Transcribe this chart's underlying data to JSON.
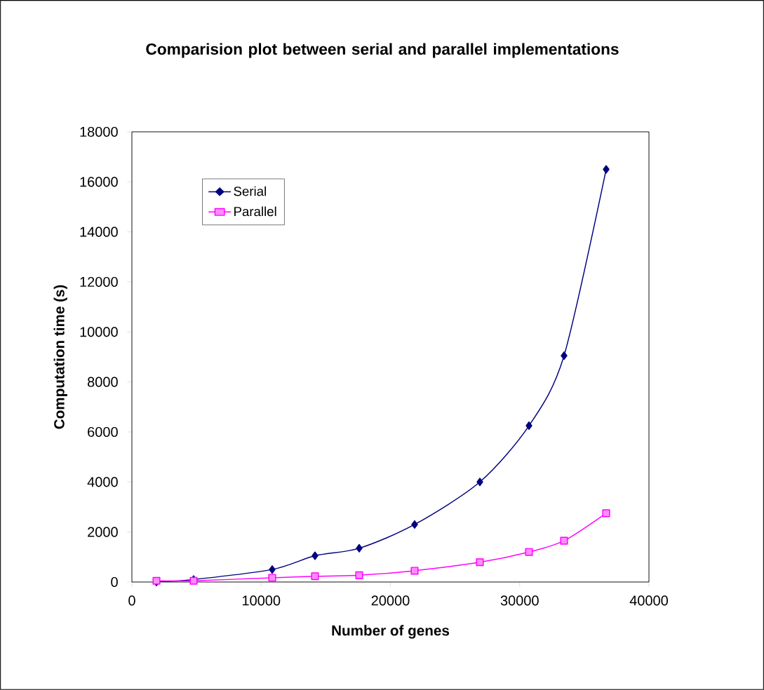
{
  "chart_data": {
    "type": "line",
    "title": "Comparision plot between serial and parallel implementations",
    "xlabel": "Number of genes",
    "ylabel": "Computation time (s)",
    "x": [
      1900,
      4776,
      10855,
      14165,
      17585,
      21872,
      26920,
      30719,
      33433,
      36690
    ],
    "series": [
      {
        "name": "Serial",
        "color": "#000080",
        "marker": "diamond",
        "values": [
          0,
          100,
          500,
          1050,
          1350,
          2300,
          4000,
          6250,
          9050,
          16500
        ]
      },
      {
        "name": "Parallel",
        "color": "#ff00ff",
        "marker": "square",
        "values": [
          50,
          50,
          170,
          230,
          270,
          450,
          790,
          1200,
          1650,
          2750
        ]
      }
    ],
    "xlim": [
      0,
      40000
    ],
    "xticks": [
      0,
      10000,
      20000,
      30000,
      40000
    ],
    "ylim": [
      0,
      18000
    ],
    "yticks": [
      0,
      2000,
      4000,
      6000,
      8000,
      10000,
      12000,
      14000,
      16000,
      18000
    ],
    "grid": false,
    "legend": "top left",
    "line_style": "solid"
  }
}
